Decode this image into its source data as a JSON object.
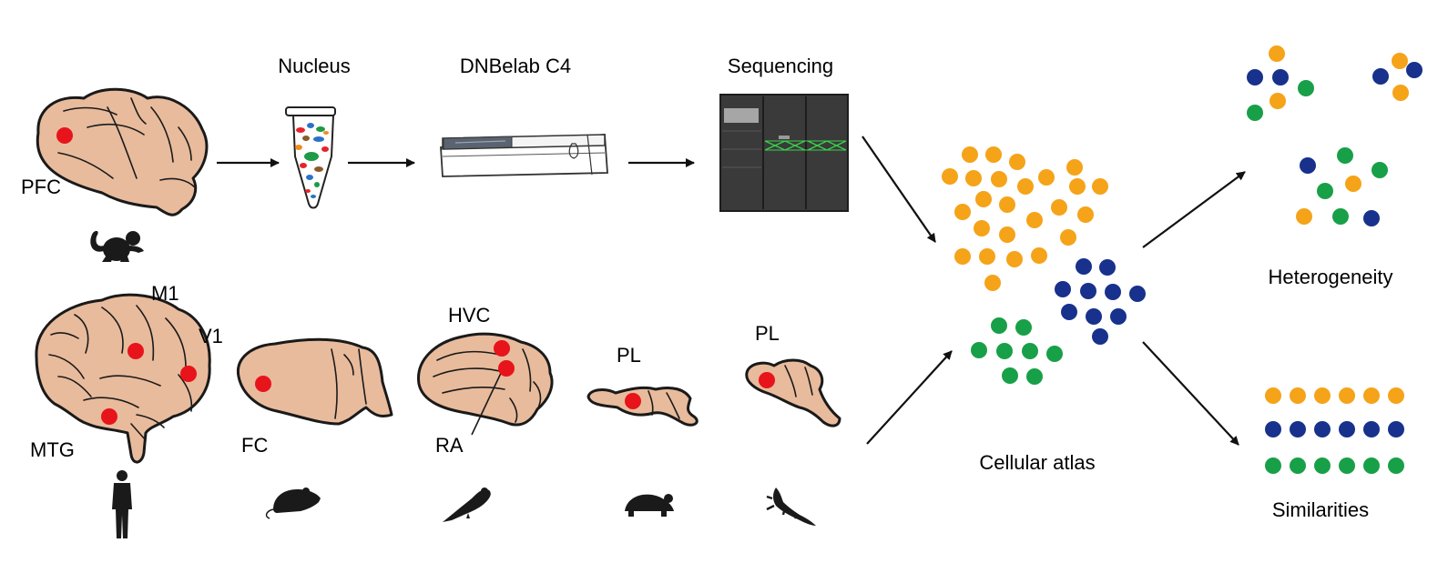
{
  "steps": {
    "nucleus": "Nucleus",
    "dnbelab": "DNBelab C4",
    "sequencing": "Sequencing"
  },
  "regions": {
    "pfc": "PFC",
    "m1": "M1",
    "v1": "V1",
    "mtg": "MTG",
    "fc": "FC",
    "hvc": "HVC",
    "ra": "RA",
    "pl_turtle": "PL",
    "pl_lizard": "PL"
  },
  "outputs": {
    "atlas": "Cellular atlas",
    "heterogeneity": "Heterogeneity",
    "similarities": "Similarities"
  },
  "species_icons": [
    "monkey-icon",
    "human-icon",
    "mouse-icon",
    "bird-icon",
    "turtle-icon",
    "lizard-icon"
  ],
  "colors": {
    "brain_fill": "#E8BB9C",
    "region_marker": "#E8141B",
    "cell_orange": "#F5A319",
    "cell_navy": "#17318C",
    "cell_green": "#18A048"
  }
}
